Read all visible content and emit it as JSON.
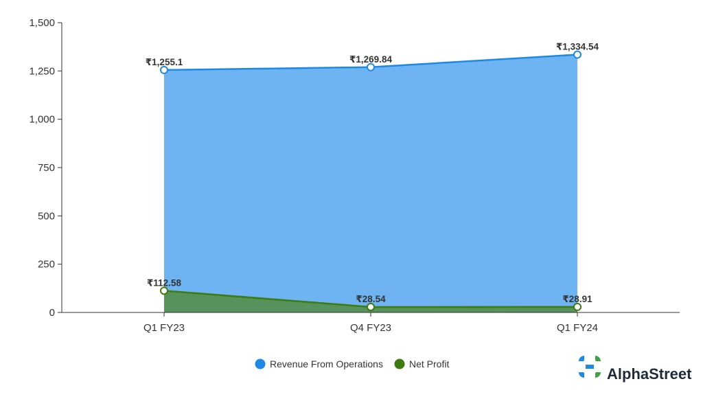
{
  "chart_data": {
    "type": "area",
    "categories": [
      "Q1 FY23",
      "Q4 FY23",
      "Q1 FY24"
    ],
    "series": [
      {
        "name": "Revenue From Operations",
        "values": [
          1255.1,
          1269.84,
          1334.54
        ],
        "labels": [
          "₹1,255.1",
          "₹1,269.84",
          "₹1,334.54"
        ],
        "line_color": "#1e88e5",
        "fill_color": "#6eb3f2",
        "marker_color": "#1e88e5"
      },
      {
        "name": "Net Profit",
        "values": [
          112.58,
          28.54,
          28.91
        ],
        "labels": [
          "₹112.58",
          "₹28.54",
          "₹28.91"
        ],
        "line_color": "#3d7a0f",
        "fill_color": "#56935c",
        "marker_color": "#3d7a0f"
      }
    ],
    "ylim": [
      0,
      1500
    ],
    "yticks": [
      {
        "value": 0,
        "label": "0"
      },
      {
        "value": 250,
        "label": "250"
      },
      {
        "value": 500,
        "label": "500"
      },
      {
        "value": 750,
        "label": "750"
      },
      {
        "value": 1000,
        "label": "1,000"
      },
      {
        "value": 1250,
        "label": "1,250"
      },
      {
        "value": 1500,
        "label": "1,500"
      }
    ],
    "grid": false,
    "legend_position": "bottom-center"
  },
  "brand": {
    "name": "AlphaStreet",
    "logo_icon": "alphastreet-logo-icon",
    "colors": [
      "#1e88e5",
      "#43a047"
    ]
  }
}
